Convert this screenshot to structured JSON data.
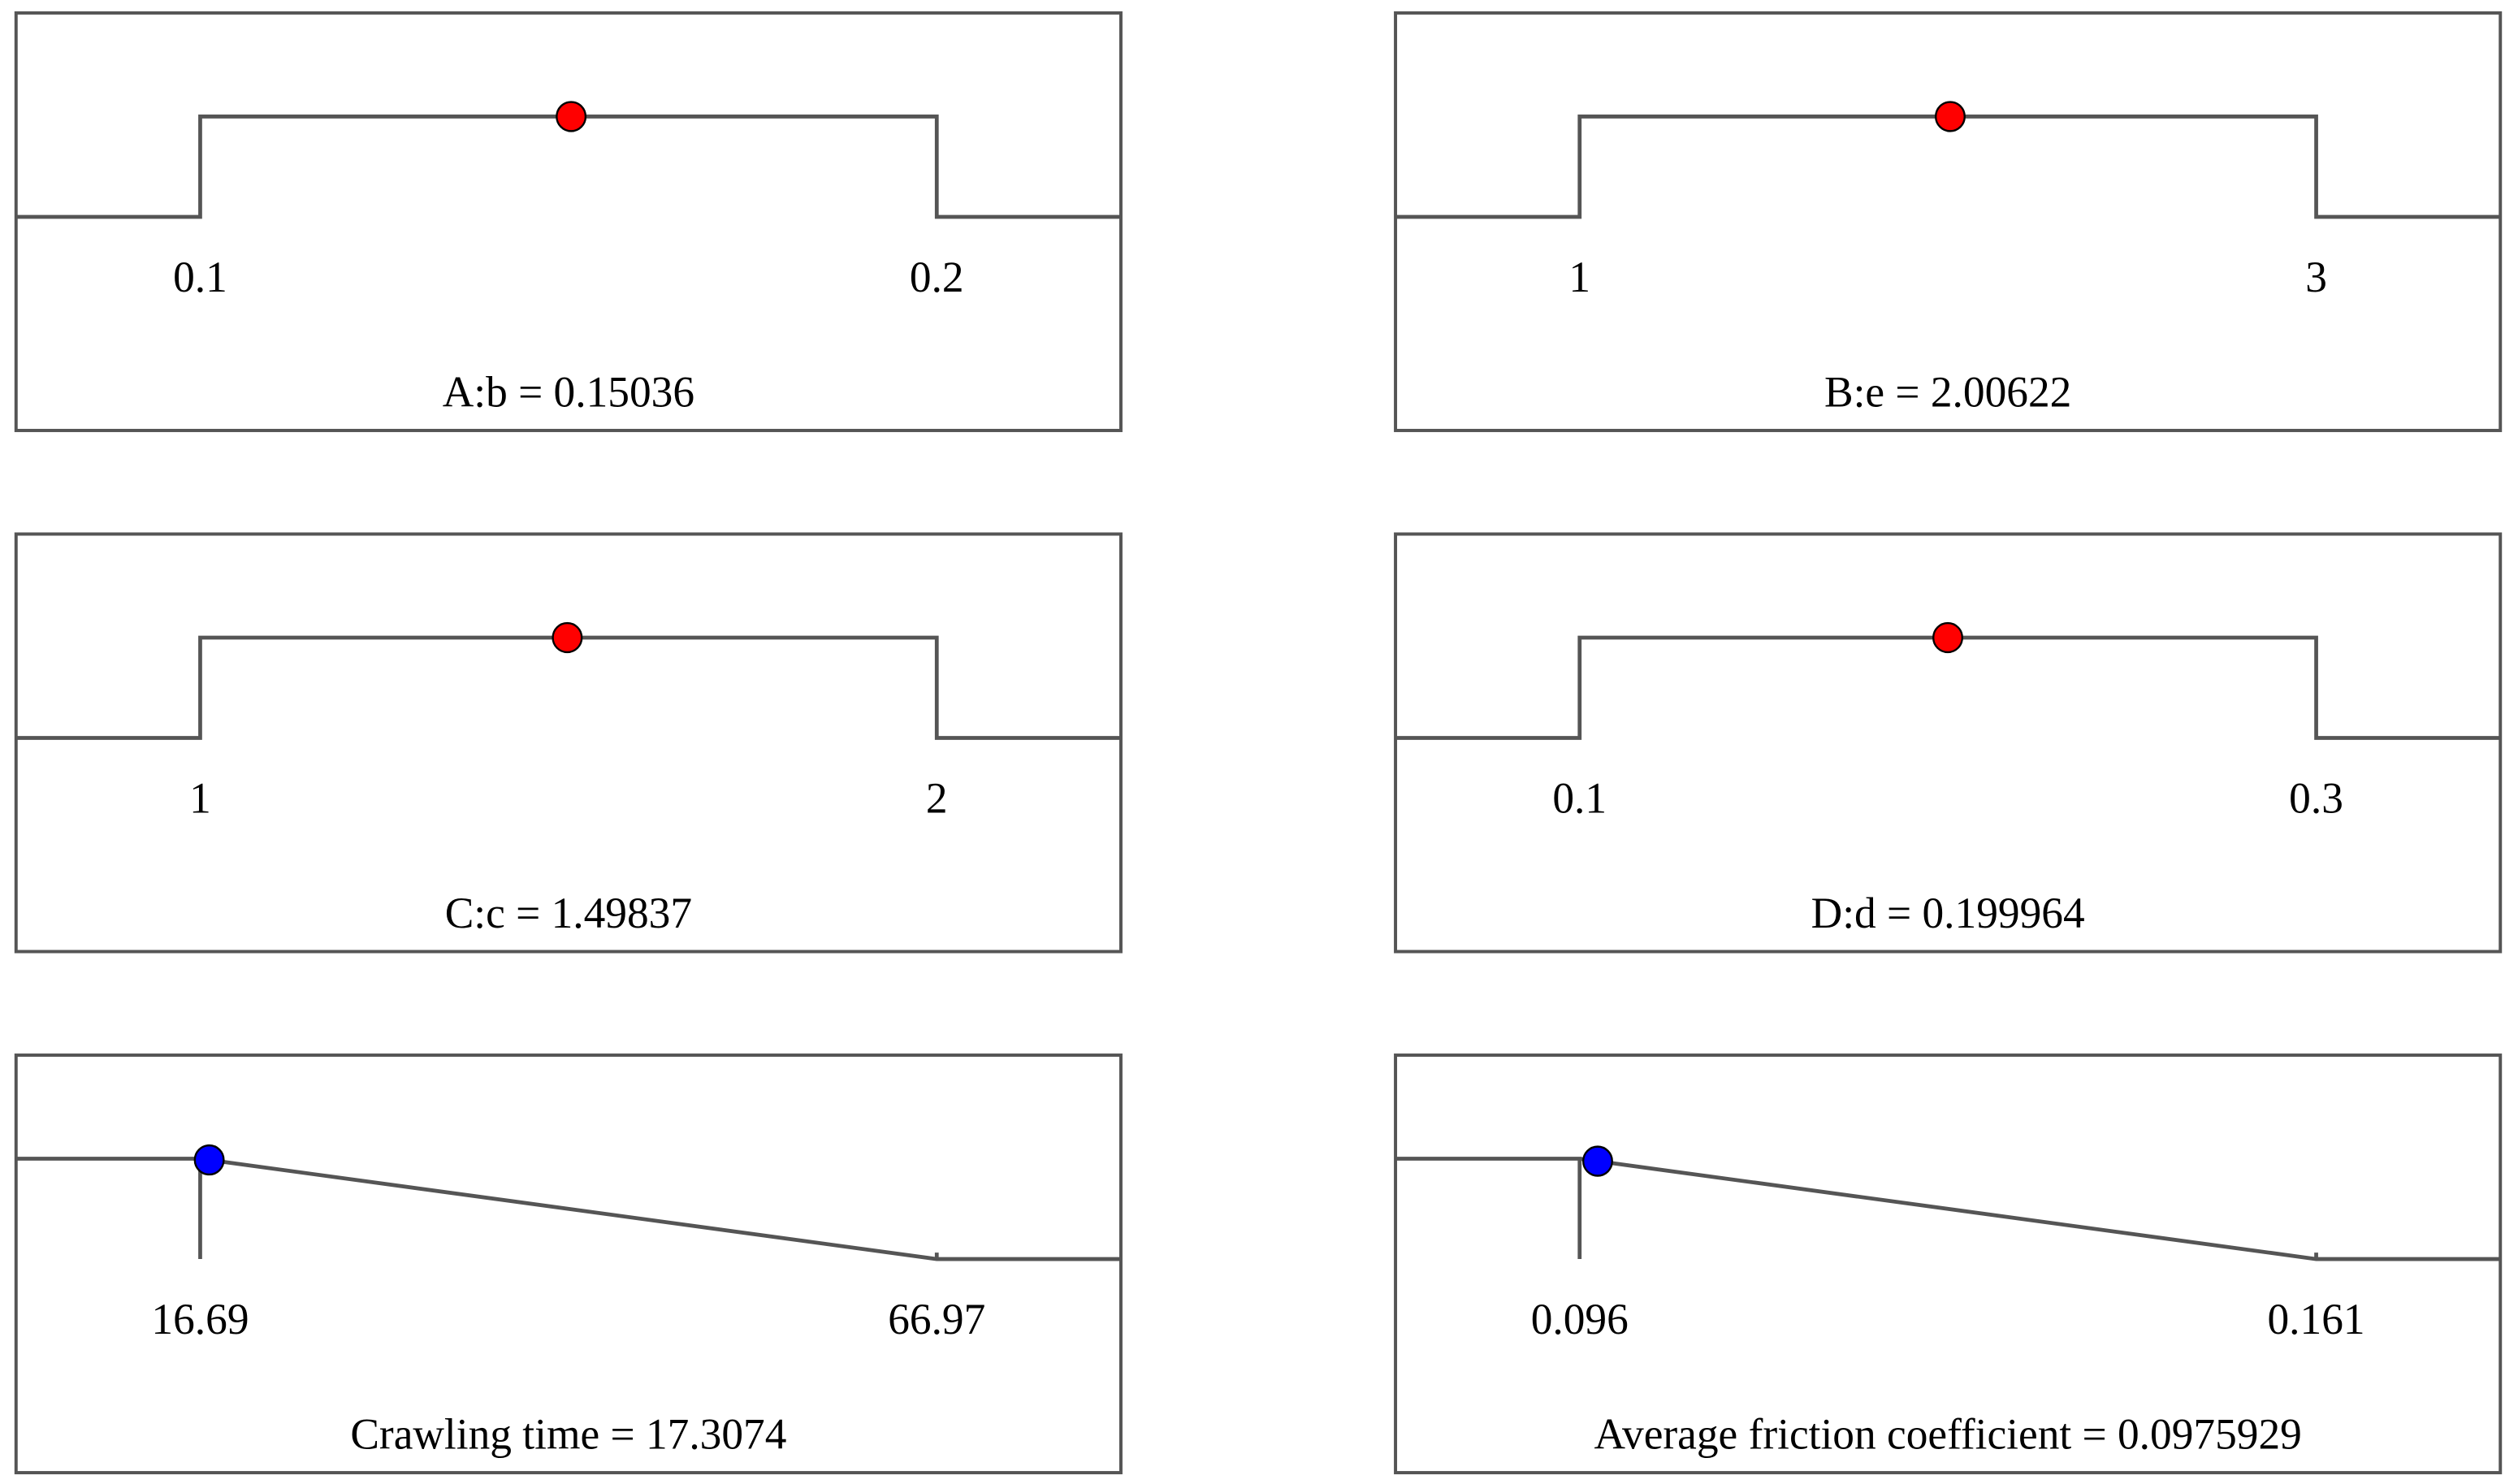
{
  "chart_data": [
    {
      "type": "ramp",
      "goal": "range",
      "xlim": [
        0.075,
        0.225
      ],
      "xticks": [
        0.1,
        0.2
      ],
      "values": [
        0.15036
      ],
      "value_labels": [
        "A:b = 0.15036"
      ],
      "color": "#ff0000"
    },
    {
      "type": "ramp",
      "goal": "range",
      "xlim": [
        0.5,
        3.5
      ],
      "xticks": [
        1,
        3
      ],
      "values": [
        2.00622
      ],
      "value_labels": [
        "B:e = 2.00622"
      ],
      "color": "#ff0000"
    },
    {
      "type": "ramp",
      "goal": "range",
      "xlim": [
        0.75,
        2.25
      ],
      "xticks": [
        1,
        2
      ],
      "values": [
        1.49837
      ],
      "value_labels": [
        "C:c = 1.49837"
      ],
      "color": "#ff0000"
    },
    {
      "type": "ramp",
      "goal": "range",
      "xlim": [
        0.05,
        0.35
      ],
      "xticks": [
        0.1,
        0.3
      ],
      "values": [
        0.199964
      ],
      "value_labels": [
        "D:d = 0.199964"
      ],
      "color": "#ff0000"
    },
    {
      "type": "ramp",
      "goal": "minimize",
      "xlim": [
        4.12,
        79.54
      ],
      "xticks": [
        16.69,
        66.97
      ],
      "values": [
        17.3074
      ],
      "value_labels": [
        "Crawling time = 17.3074"
      ],
      "color": "#0000ff"
    },
    {
      "type": "ramp",
      "goal": "minimize",
      "xlim": [
        0.07975,
        0.17725
      ],
      "xticks": [
        0.096,
        0.161
      ],
      "values": [
        0.0975929
      ],
      "value_labels": [
        "Average friction coefficient = 0.0975929"
      ],
      "color": "#0000ff"
    }
  ]
}
